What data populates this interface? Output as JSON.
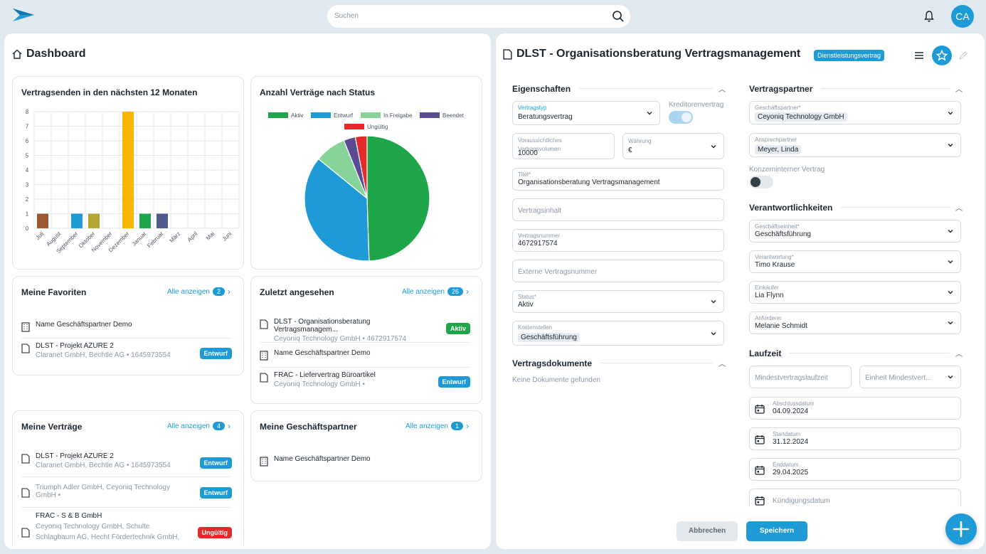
{
  "search": {
    "placeholder": "Suchen"
  },
  "user": {
    "initials": "CA"
  },
  "dashboard": {
    "title": "Dashboard"
  },
  "chart_bar": {
    "title": "Vertragsenden in den nächsten 12 Monaten",
    "chart_data": {
      "type": "bar",
      "categories": [
        "Juli",
        "August",
        "September",
        "Oktober",
        "November",
        "Dezember",
        "Januar",
        "Februar",
        "März",
        "April",
        "Mai",
        "Juni"
      ],
      "values": [
        1,
        0,
        1,
        1,
        0,
        8,
        1,
        1,
        0,
        0,
        0,
        0
      ],
      "colors": [
        "#9c5b2e",
        "#1e9ad6",
        "#1e9ad6",
        "#b5a736",
        "#b5a736",
        "#f7b500",
        "#1fa64a",
        "#4f5b8c",
        "#999",
        "#999",
        "#999",
        "#999"
      ],
      "ylim": [
        0,
        8
      ],
      "yticks": [
        "0",
        "1",
        "2",
        "3",
        "4",
        "5",
        "6",
        "7",
        "8"
      ]
    }
  },
  "chart_pie": {
    "title": "Anzahl Verträge nach Status",
    "chart_data": {
      "type": "pie",
      "legend": [
        {
          "name": "Aktiv",
          "color": "#1fa64a"
        },
        {
          "name": "Entwurf",
          "color": "#1e9ad6"
        },
        {
          "name": "In Freigabe",
          "color": "#88d39a"
        },
        {
          "name": "Beendet",
          "color": "#5a4b92"
        },
        {
          "name": "Ungültig",
          "color": "#e22b2b"
        }
      ],
      "values": [
        49,
        36,
        8,
        3,
        3
      ]
    }
  },
  "favoriten": {
    "title": "Meine Favoriten",
    "show_all": "Alle anzeigen",
    "count": "2",
    "items": [
      {
        "title": "Name Geschäftspartner Demo",
        "sub": ""
      },
      {
        "title": "DLST - Projekt AZURE 2",
        "sub": "Claranet GmbH, Bechtle AG • 1645973554",
        "badge": "Entwurf"
      }
    ]
  },
  "zuletzt": {
    "title": "Zuletzt angesehen",
    "show_all": "Alle anzeigen",
    "count": "26",
    "items": [
      {
        "title": "DLST - Organisationsberatung Vertragsmanagem...",
        "sub": "Ceyoniq Technology GmbH • 4672917574",
        "badge": "Aktiv"
      },
      {
        "title": "Name Geschäftspartner Demo",
        "sub": ""
      },
      {
        "title": "FRAC - Liefervertrag Büroartikel",
        "sub": "Ceyoniq Technology GmbH •",
        "badge": "Entwurf"
      }
    ]
  },
  "vertraege": {
    "title": "Meine Verträge",
    "show_all": "Alle anzeigen",
    "count": "4",
    "items": [
      {
        "title": "DLST - Projekt AZURE 2",
        "sub": "Claranet GmbH, Bechtle AG • 1645973554",
        "badge": "Entwurf"
      },
      {
        "title": "",
        "sub": "Triumph Adler GmbH, Ceyoniq Technology GmbH •",
        "badge": "Entwurf"
      },
      {
        "title": "FRAC - S & B GmbH",
        "sub": "Ceyoniq Technology GmbH, Schulte Schlagbaum AG, Hecht Fördertechnik GmbH,",
        "badge": "Ungültig"
      }
    ]
  },
  "partner": {
    "title": "Meine Geschäftspartner",
    "show_all": "Alle anzeigen",
    "count": "1",
    "items": [
      {
        "title": "Name Geschäftspartner Demo"
      }
    ]
  },
  "detail": {
    "title": "DLST - Organisationsberatung Vertragsmanagement",
    "tag": "Dienstleistungsvertrag",
    "eigenschaften": "Eigenschaften",
    "vertragstyp_label": "Vertragstyp",
    "vertragstyp": "Beratungsvertrag",
    "kreditoren_label": "Kreditorenvertrag",
    "volumen_label": "Voraussichtliches Vertragsvolumen",
    "volumen": "10000",
    "waehrung_label": "Währung",
    "waehrung": "€",
    "titel_label": "Titel*",
    "titel": "Organisationsberatung Vertragsmanagement",
    "inhalt_ph": "Vertragsinhalt",
    "nummer_label": "Vertragsnummer",
    "nummer": "4672917574",
    "extern_ph": "Externe Vertragsnummer",
    "status_label": "Status*",
    "status": "Aktiv",
    "kosten_label": "Kostenstellen",
    "kosten": "Geschäftsführung",
    "dokumente": "Vertragsdokumente",
    "keine_dok": "Keine Dokumente gefunden",
    "vertragspartner": "Vertragspartner",
    "gp_label": "Geschäftspartner*",
    "gp": "Ceyoniq Technology GmbH",
    "ansprech_label": "Ansprechpartner",
    "ansprech": "Meyer, Linda",
    "konzern_label": "Konzerninterner Vertrag",
    "verantwortlichkeiten": "Verantwortlichkeiten",
    "einheit_label": "Geschäftseinheit*",
    "einheit": "Geschäftsführung",
    "verantwortung_label": "Verantwortung*",
    "verantwortung": "Timo Krause",
    "einkaeufer_label": "Einkäufer",
    "einkaeufer": "Lia Flynn",
    "anforderer_label": "Anforderer",
    "anforderer": "Melanie Schmidt",
    "laufzeit": "Laufzeit",
    "mindest_ph": "Mindestvertragslaufzeit",
    "einheit_mindest_ph": "Einheit Mindestvert...",
    "abschluss_label": "Abschlussdatum",
    "abschluss": "04.09.2024",
    "start_label": "Startdatum",
    "start": "31.12.2024",
    "end_label": "Enddatum",
    "end": "29.04.2025",
    "kuend_ph": "Kündigungsdatum",
    "abbrechen": "Abbrechen",
    "speichern": "Speichern"
  }
}
